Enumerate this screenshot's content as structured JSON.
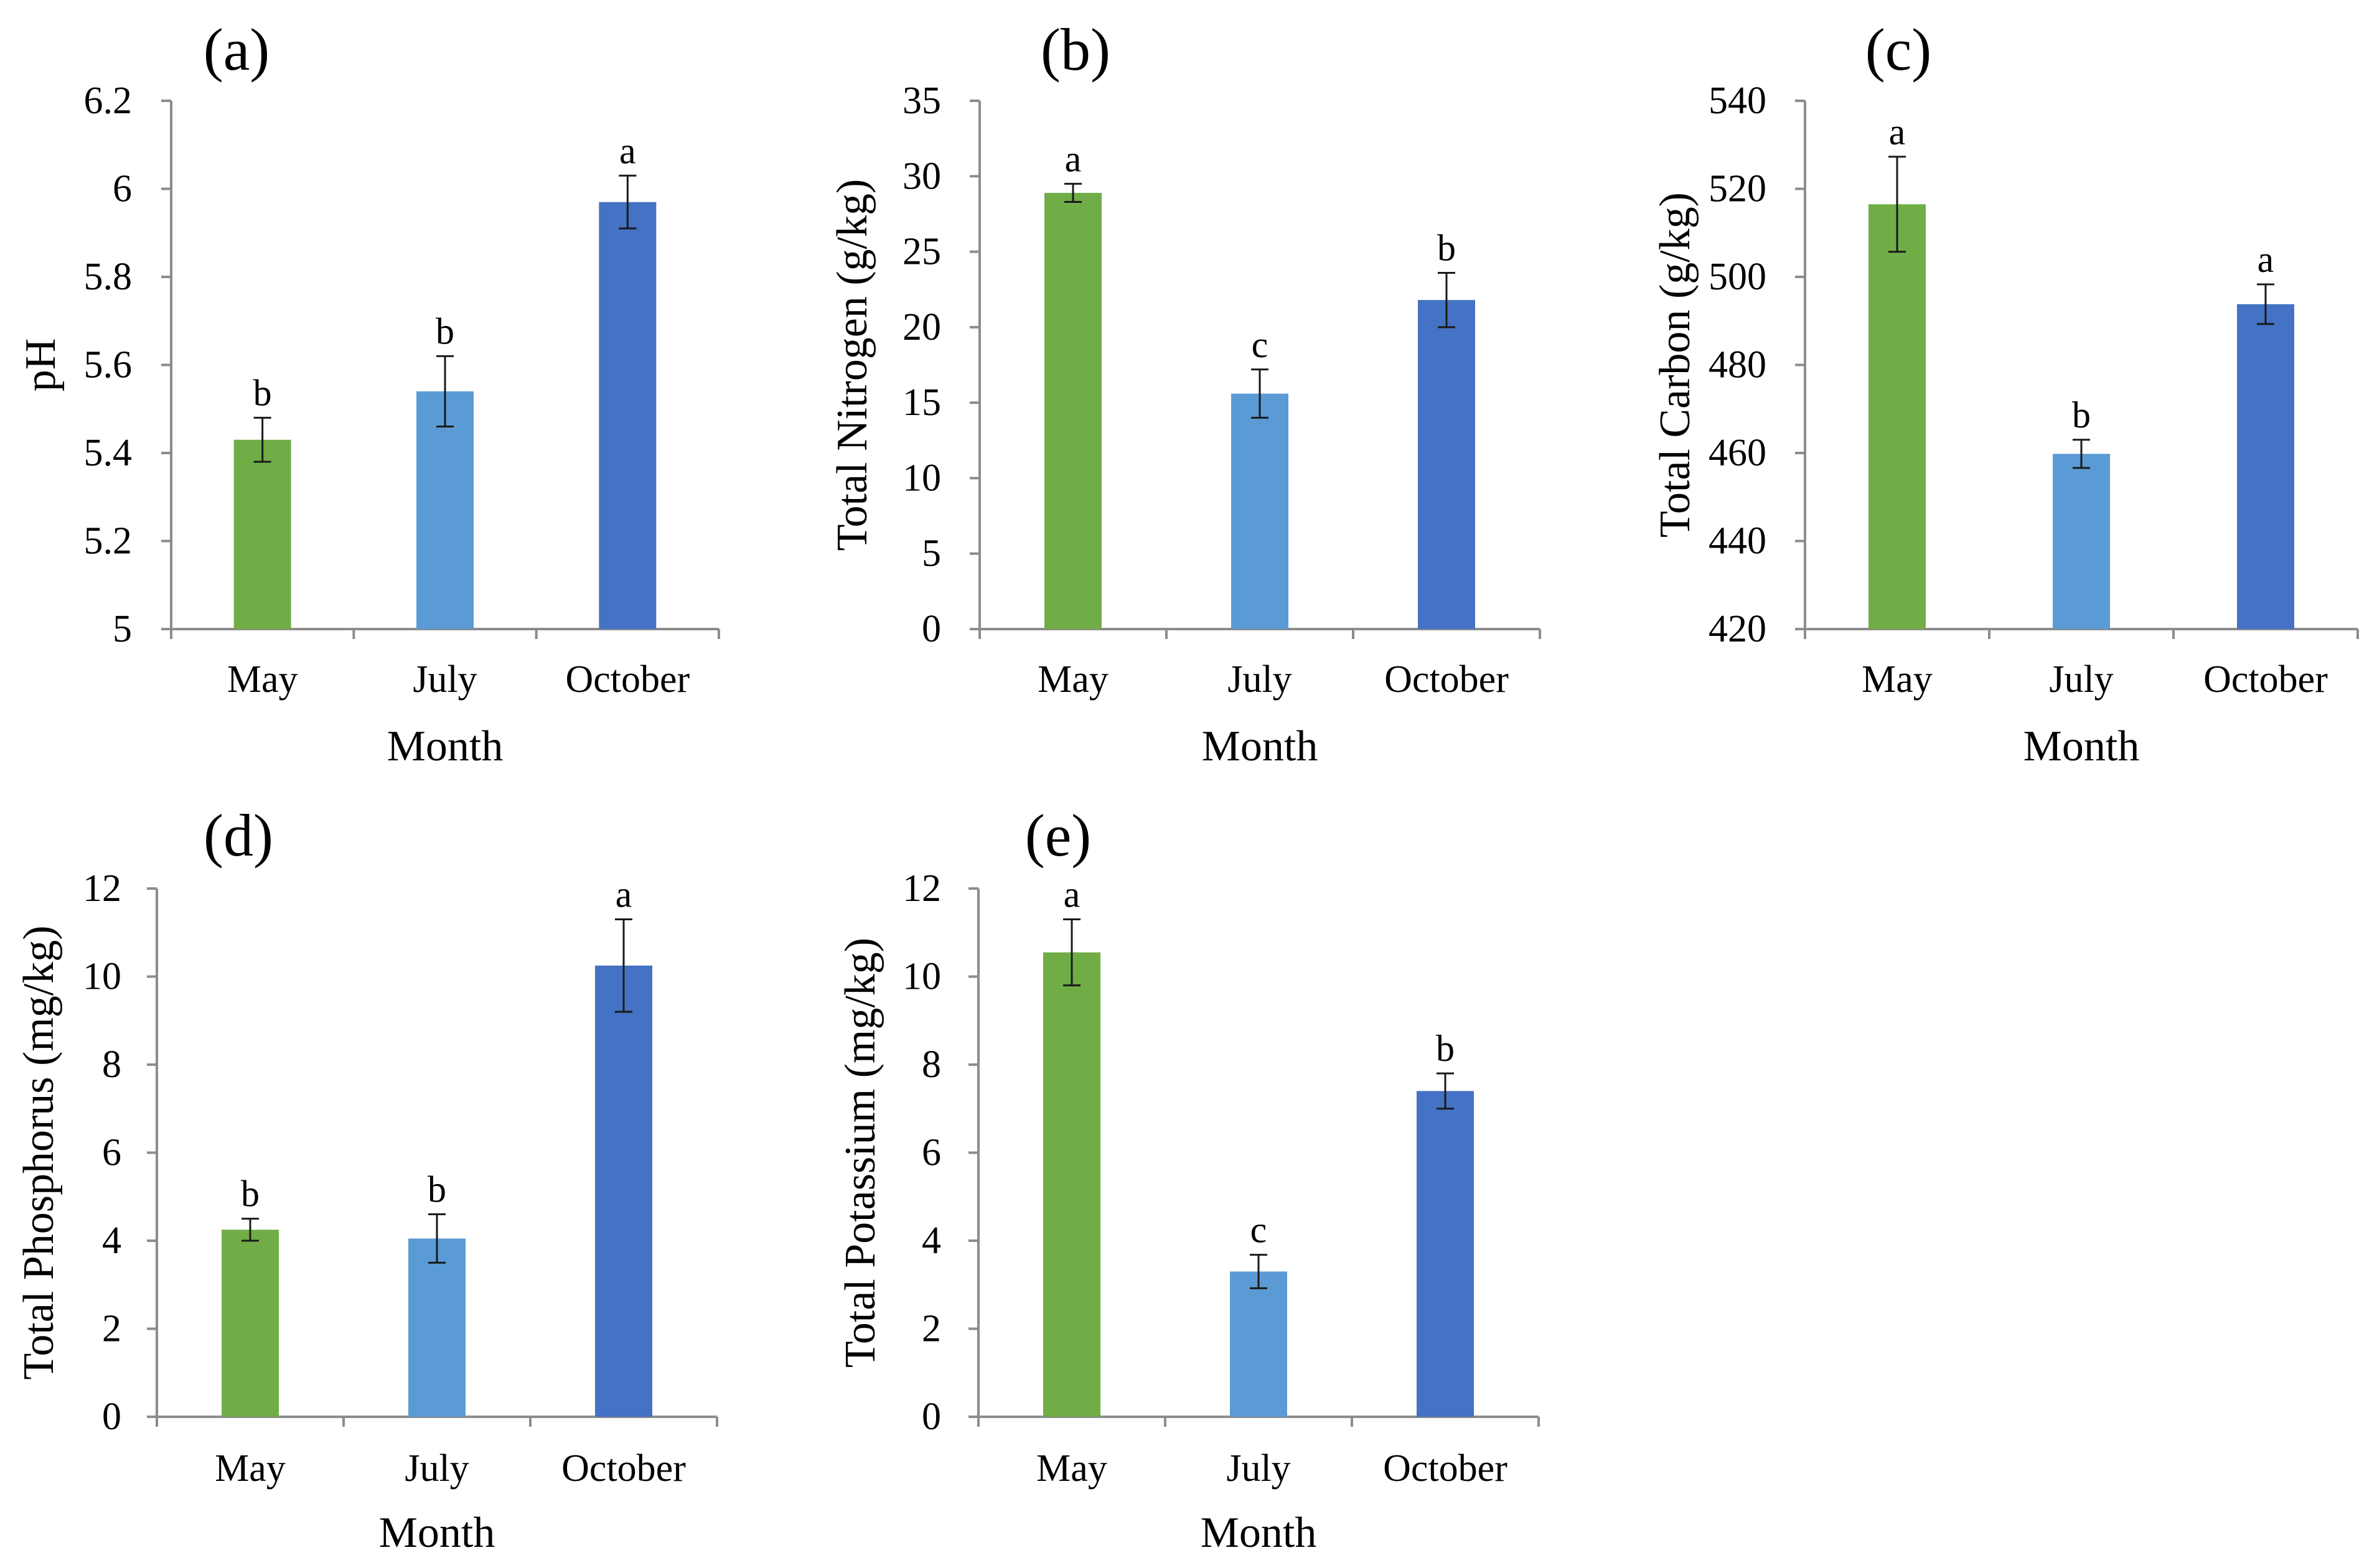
{
  "colors": {
    "May": "#70ad47",
    "July": "#5b9bd5",
    "October": "#4472c4"
  },
  "chart_data": [
    {
      "type": "bar",
      "panel": "(a)",
      "categories": [
        "May",
        "July",
        "October"
      ],
      "values": [
        5.43,
        5.54,
        5.97
      ],
      "errors": [
        0.05,
        0.08,
        0.06
      ],
      "significance": [
        "b",
        "b",
        "a"
      ],
      "xlabel": "Month",
      "ylabel": "pH",
      "ylim": [
        5,
        6.2
      ],
      "yticks": [
        "5",
        "5.2",
        "5.4",
        "5.6",
        "5.8",
        "6",
        "6.2"
      ],
      "grid": false
    },
    {
      "type": "bar",
      "panel": "(b)",
      "categories": [
        "May",
        "July",
        "October"
      ],
      "values": [
        28.9,
        15.6,
        21.8
      ],
      "errors": [
        0.6,
        1.6,
        1.8
      ],
      "significance": [
        "a",
        "c",
        "b"
      ],
      "xlabel": "Month",
      "ylabel": "Total Nitrogen (g/kg)",
      "ylim": [
        0,
        35
      ],
      "yticks": [
        "0",
        "5",
        "10",
        "15",
        "20",
        "25",
        "30",
        "35"
      ],
      "grid": false
    },
    {
      "type": "bar",
      "panel": "(c)",
      "categories": [
        "May",
        "July",
        "October"
      ],
      "values": [
        516.5,
        459.8,
        493.8
      ],
      "errors": [
        10.8,
        3.2,
        4.5
      ],
      "significance": [
        "a",
        "b",
        "a"
      ],
      "xlabel": "Month",
      "ylabel": "Total Carbon (g/kg)",
      "ylim": [
        420,
        540
      ],
      "yticks": [
        "420",
        "440",
        "460",
        "480",
        "500",
        "520",
        "540"
      ],
      "grid": false
    },
    {
      "type": "bar",
      "panel": "(d)",
      "categories": [
        "May",
        "July",
        "October"
      ],
      "values": [
        4.25,
        4.05,
        10.25
      ],
      "errors": [
        0.25,
        0.55,
        1.05
      ],
      "significance": [
        "b",
        "b",
        "a"
      ],
      "xlabel": "Month",
      "ylabel": "Total Phosphorus (mg/kg)",
      "ylim": [
        0,
        12
      ],
      "yticks": [
        "0",
        "2",
        "4",
        "6",
        "8",
        "10",
        "12"
      ],
      "grid": false
    },
    {
      "type": "bar",
      "panel": "(e)",
      "categories": [
        "May",
        "July",
        "October"
      ],
      "values": [
        10.55,
        3.3,
        7.4
      ],
      "errors": [
        0.75,
        0.38,
        0.4
      ],
      "significance": [
        "a",
        "c",
        "b"
      ],
      "xlabel": "Month",
      "ylabel": "Total Potassium (mg/kg)",
      "ylim": [
        0,
        12
      ],
      "yticks": [
        "0",
        "2",
        "4",
        "6",
        "8",
        "10",
        "12"
      ],
      "grid": false
    }
  ]
}
